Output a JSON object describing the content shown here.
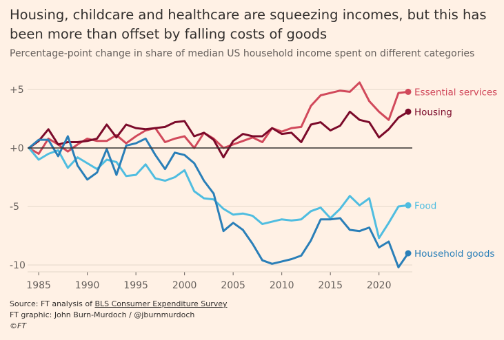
{
  "title": "Housing, childcare and healthcare are squeezing incomes, but this has been more than offset by falling costs of goods",
  "subtitle": "Percentage-point change in share of median US household income spent on different categories",
  "footer": {
    "source_prefix": "Source: FT analysis of ",
    "source_link": "BLS Consumer Expenditure Survey",
    "graphic": "FT graphic: John Burn-Murdoch / @jburnmurdoch",
    "logo": "©FT"
  },
  "colors": {
    "background": "#fff1e5",
    "essential": "#d1495b",
    "housing": "#7b0a2a",
    "food": "#4fbde0",
    "household": "#2a7fb8",
    "grid": "#e3d6c9",
    "zero": "#33302e",
    "tick": "#66605c"
  },
  "chart_data": {
    "type": "line",
    "title": "Housing, childcare and healthcare are squeezing incomes, but this has been more than offset by falling costs of goods",
    "ylabel": "Percentage-point change in share of median US household income",
    "xlim": [
      1984,
      2023
    ],
    "ylim": [
      -11,
      6
    ],
    "y_ticks": [
      5,
      0,
      -5,
      -10
    ],
    "y_tick_labels": [
      "+5",
      "+0",
      "-5",
      "-10"
    ],
    "x_ticks": [
      1985,
      1990,
      1995,
      2000,
      2005,
      2010,
      2015,
      2020
    ],
    "x_tick_labels": [
      "1985",
      "1990",
      "1995",
      "2000",
      "2005",
      "2010",
      "2015",
      "2020"
    ],
    "x": [
      1984,
      1985,
      1986,
      1987,
      1988,
      1989,
      1990,
      1991,
      1992,
      1993,
      1994,
      1995,
      1996,
      1997,
      1998,
      1999,
      2000,
      2001,
      2002,
      2003,
      2004,
      2005,
      2006,
      2007,
      2008,
      2009,
      2010,
      2011,
      2012,
      2013,
      2014,
      2015,
      2016,
      2017,
      2018,
      2019,
      2020,
      2021,
      2022,
      2023
    ],
    "series": [
      {
        "name": "Essential services",
        "color_key": "essential",
        "values": [
          0,
          -0.5,
          0.8,
          0.3,
          -0.3,
          0.3,
          0.8,
          0.6,
          0.6,
          1.1,
          0.4,
          1.0,
          1.5,
          1.7,
          0.5,
          0.8,
          1.0,
          0.0,
          1.3,
          0.8,
          0.0,
          0.3,
          0.6,
          0.9,
          0.5,
          1.7,
          1.4,
          1.7,
          1.8,
          3.6,
          4.5,
          4.7,
          4.9,
          4.8,
          5.6,
          4.0,
          3.1,
          2.4,
          4.7,
          4.8
        ]
      },
      {
        "name": "Housing",
        "color_key": "housing",
        "values": [
          0,
          0.6,
          1.6,
          0.3,
          0.5,
          0.5,
          0.6,
          0.8,
          2.0,
          0.9,
          2.0,
          1.7,
          1.6,
          1.7,
          1.8,
          2.2,
          2.3,
          1.0,
          1.3,
          0.7,
          -0.8,
          0.6,
          1.2,
          1.0,
          1.0,
          1.7,
          1.2,
          1.3,
          0.5,
          2.0,
          2.2,
          1.5,
          1.9,
          3.1,
          2.4,
          2.2,
          0.9,
          1.6,
          2.6,
          3.1
        ]
      },
      {
        "name": "Food",
        "color_key": "food",
        "values": [
          0,
          -1.0,
          -0.5,
          -0.2,
          -1.7,
          -0.8,
          -1.3,
          -1.8,
          -1.0,
          -1.2,
          -2.4,
          -2.3,
          -1.4,
          -2.6,
          -2.8,
          -2.5,
          -1.9,
          -3.7,
          -4.3,
          -4.4,
          -5.2,
          -5.7,
          -5.6,
          -5.8,
          -6.5,
          -6.3,
          -6.1,
          -6.2,
          -6.1,
          -5.4,
          -5.1,
          -6.0,
          -5.2,
          -4.1,
          -4.9,
          -4.3,
          -7.7,
          -6.4,
          -5.0,
          -4.9
        ]
      },
      {
        "name": "Household goods",
        "color_key": "household",
        "values": [
          0,
          0.7,
          0.7,
          -0.7,
          1.0,
          -1.5,
          -2.7,
          -2.1,
          -0.1,
          -2.3,
          0.2,
          0.4,
          0.8,
          -0.6,
          -1.8,
          -0.4,
          -0.6,
          -1.3,
          -2.8,
          -3.9,
          -7.1,
          -6.4,
          -7.0,
          -8.2,
          -9.6,
          -9.9,
          -9.7,
          -9.5,
          -9.2,
          -7.9,
          -6.1,
          -6.1,
          -6.0,
          -7.0,
          -7.1,
          -6.8,
          -8.5,
          -8.0,
          -10.2,
          -9.0
        ]
      }
    ],
    "legend_placement": "end-of-line labels, right"
  }
}
